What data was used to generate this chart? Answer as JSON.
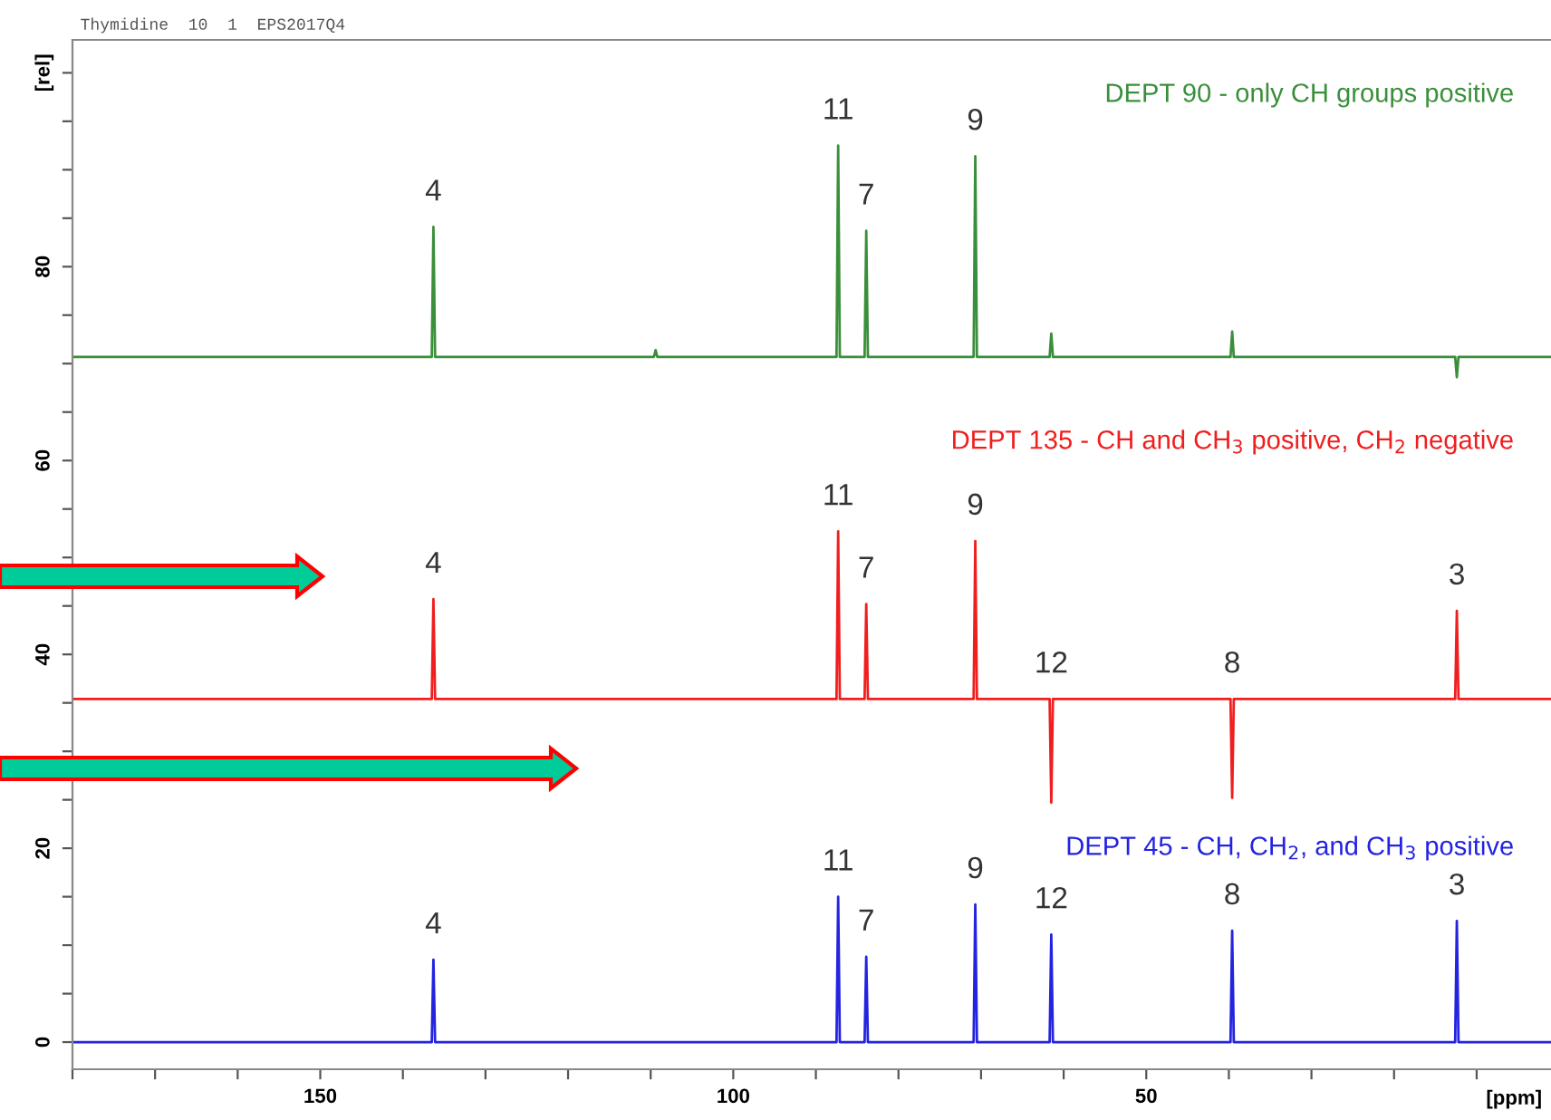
{
  "chart_data": {
    "type": "line",
    "xlim": [
      180,
      1
    ],
    "ylim": [
      -2.8,
      103.4
    ],
    "xticks": [
      {
        "value": 180,
        "label": null
      },
      {
        "value": 170,
        "label": null
      },
      {
        "value": 160,
        "label": null
      },
      {
        "value": 150,
        "label": "150"
      },
      {
        "value": 140,
        "label": null
      },
      {
        "value": 130,
        "label": null
      },
      {
        "value": 120,
        "label": null
      },
      {
        "value": 110,
        "label": null
      },
      {
        "value": 100,
        "label": "100"
      },
      {
        "value": 90,
        "label": null
      },
      {
        "value": 80,
        "label": null
      },
      {
        "value": 70,
        "label": null
      },
      {
        "value": 60,
        "label": null
      },
      {
        "value": 50,
        "label": "50"
      },
      {
        "value": 40,
        "label": null
      },
      {
        "value": 30,
        "label": null
      },
      {
        "value": 20,
        "label": null
      },
      {
        "value": 10,
        "label": null
      }
    ],
    "yticks": [
      0,
      {
        "value": 5,
        "label": null
      },
      {
        "value": 10,
        "label": null
      },
      {
        "value": 15,
        "label": null
      },
      20,
      {
        "value": 25,
        "label": null
      },
      {
        "value": 30,
        "label": null
      },
      {
        "value": 35,
        "label": null
      },
      40,
      {
        "value": 45,
        "label": null
      },
      {
        "value": 50,
        "label": null
      },
      {
        "value": 55,
        "label": null
      },
      60,
      {
        "value": 65,
        "label": null
      },
      {
        "value": 70,
        "label": null
      },
      {
        "value": 75,
        "label": null
      },
      80,
      {
        "value": 85,
        "label": null
      },
      {
        "value": 90,
        "label": null
      },
      {
        "value": 95,
        "label": null
      },
      {
        "value": 100,
        "label": "[rel]"
      }
    ],
    "xlabel": "[ppm]",
    "grid": false,
    "series": [
      {
        "name": "DEPT 90 - only CH groups positive",
        "color": "#3a8f3a",
        "x": [
          180,
          136.5,
          136.3,
          136.1,
          109.6,
          109.4,
          109.2,
          87.5,
          87.3,
          87.1,
          84.1,
          83.9,
          83.7,
          70.9,
          70.7,
          70.5,
          61.7,
          61.5,
          61.3,
          39.8,
          39.6,
          39.4,
          12.6,
          12.4,
          12.2,
          1
        ],
        "values": [
          70.7,
          70.7,
          84.1,
          70.7,
          70.7,
          71.4,
          70.7,
          70.7,
          92.5,
          70.7,
          70.7,
          83.7,
          70.7,
          70.7,
          91.4,
          70.7,
          70.7,
          73.1,
          70.7,
          70.7,
          73.3,
          70.7,
          70.7,
          68.6,
          70.7,
          70.7
        ]
      },
      {
        "name": "DEPT 135 - CH and CH$_{3}$ positive, CH$_{2}$ negative",
        "color": "#f01e1e",
        "x": [
          180,
          136.5,
          136.3,
          136.1,
          87.5,
          87.3,
          87.1,
          84.1,
          83.9,
          83.7,
          70.9,
          70.7,
          70.5,
          61.7,
          61.5,
          61.3,
          39.8,
          39.6,
          39.4,
          12.6,
          12.4,
          12.2,
          1
        ],
        "values": [
          35.4,
          35.4,
          45.7,
          35.4,
          35.4,
          52.7,
          35.4,
          35.4,
          45.2,
          35.4,
          35.4,
          51.7,
          35.4,
          35.4,
          24.7,
          35.4,
          35.4,
          25.2,
          35.4,
          35.4,
          44.5,
          35.4,
          35.4
        ]
      },
      {
        "name": "DEPT 45 - CH, CH$_{2}$, and CH$_{3}$ positive",
        "color": "#2323e0",
        "x": [
          180,
          136.5,
          136.3,
          136.1,
          87.5,
          87.3,
          87.1,
          84.1,
          83.9,
          83.7,
          70.9,
          70.7,
          70.5,
          61.7,
          61.5,
          61.3,
          39.8,
          39.6,
          39.4,
          12.6,
          12.4,
          12.2,
          1
        ],
        "values": [
          0,
          0,
          8.5,
          0,
          0,
          15.0,
          0,
          0,
          8.8,
          0,
          0,
          14.2,
          0,
          0,
          11.1,
          0,
          0,
          11.5,
          0,
          0,
          12.5,
          0,
          0
        ]
      }
    ],
    "annotations": [
      "Thymidine  10  1  EPS2017Q4",
      {
        "text": "4",
        "x": 136.3,
        "y": 84.1
      },
      {
        "text": "11",
        "x": 87.3,
        "y": 92.5
      },
      {
        "text": "7",
        "x": 83.9,
        "y": 83.7
      },
      {
        "text": "9",
        "x": 70.7,
        "y": 91.4
      },
      {
        "text": "4",
        "x": 136.3,
        "y": 45.7
      },
      {
        "text": "11",
        "x": 87.3,
        "y": 52.7
      },
      {
        "text": "7",
        "x": 83.9,
        "y": 45.2
      },
      {
        "text": "9",
        "x": 70.7,
        "y": 51.7
      },
      {
        "text": "12",
        "x": 61.5,
        "y": 35.4
      },
      {
        "text": "8",
        "x": 39.6,
        "y": 35.4
      },
      {
        "text": "3",
        "x": 12.4,
        "y": 44.5
      },
      {
        "text": "4",
        "x": 136.3,
        "y": 8.5
      },
      {
        "text": "11",
        "x": 87.3,
        "y": 15.0
      },
      {
        "text": "7",
        "x": 83.9,
        "y": 8.8
      },
      {
        "text": "9",
        "x": 70.7,
        "y": 14.2
      },
      {
        "text": "12",
        "x": 61.5,
        "y": 11.1
      },
      {
        "text": "8",
        "x": 39.6,
        "y": 11.5
      },
      {
        "text": "3",
        "x": 12.4,
        "y": 12.5
      }
    ]
  }
}
